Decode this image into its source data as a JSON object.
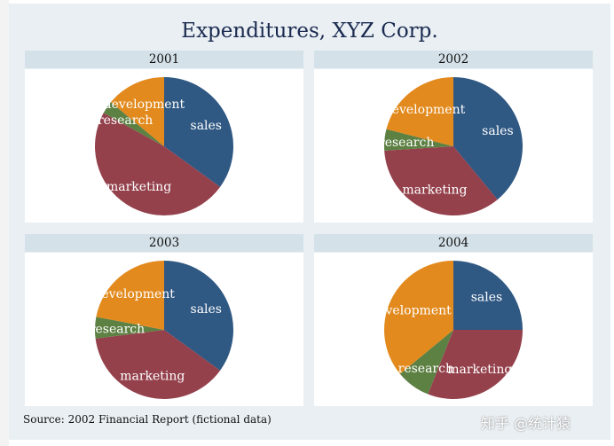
{
  "chart_data": {
    "type": "pie",
    "title": "Expenditures, XYZ Corp.",
    "note": "Source: 2002 Financial Report (fictional data)",
    "slice_order": [
      "sales",
      "marketing",
      "research",
      "development"
    ],
    "colors": {
      "sales": "#2f5883",
      "marketing": "#94414c",
      "research": "#5d8043",
      "development": "#e28a1d"
    },
    "panels": [
      {
        "year": "2001",
        "values": {
          "sales": 35,
          "marketing": 48,
          "research": 3,
          "development": 14
        }
      },
      {
        "year": "2002",
        "values": {
          "sales": 39,
          "marketing": 35,
          "research": 5,
          "development": 21
        }
      },
      {
        "year": "2003",
        "values": {
          "sales": 35,
          "marketing": 38,
          "research": 5,
          "development": 22
        }
      },
      {
        "year": "2004",
        "values": {
          "sales": 25,
          "marketing": 31,
          "research": 8,
          "development": 36
        }
      }
    ]
  },
  "watermark": "知乎 @统计猿"
}
